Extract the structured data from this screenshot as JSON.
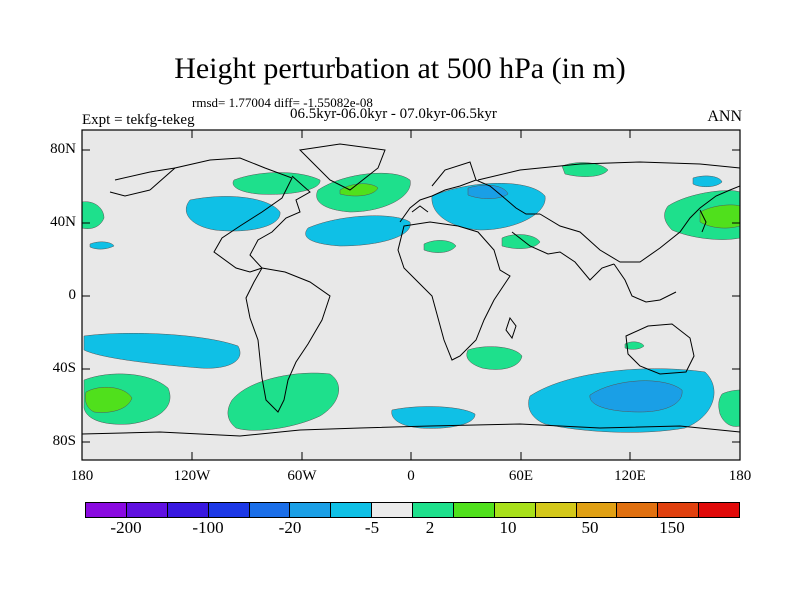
{
  "header": {
    "title": "Height perturbation at 500 hPa (in m)",
    "stats": "rmsd= 1.77004 diff= -1.55082e-08",
    "experiment": "Expt = tekfg-tekeg",
    "period": "06.5kyr-06.0kyr - 07.0kyr-06.5kyr",
    "season": "ANN"
  },
  "map": {
    "lat_labels": [
      "80N",
      "40N",
      "0",
      "40S",
      "80S"
    ],
    "lon_labels": [
      "180",
      "120W",
      "60W",
      "0",
      "60E",
      "120E",
      "180"
    ],
    "background_color": "#e8e8e8"
  },
  "colorbar": {
    "colors": [
      "#8a0ae0",
      "#6010e0",
      "#3818e0",
      "#1c38e6",
      "#1a6ee8",
      "#1a9fe6",
      "#0fc0e6",
      "#ebebeb",
      "#1ee08c",
      "#50e01c",
      "#a8e01a",
      "#d4c81a",
      "#e0a014",
      "#e07010",
      "#e0400e",
      "#e00a0a"
    ],
    "labels": [
      "-200",
      "-100",
      "-20",
      "-5",
      "2",
      "10",
      "50",
      "150"
    ]
  }
}
